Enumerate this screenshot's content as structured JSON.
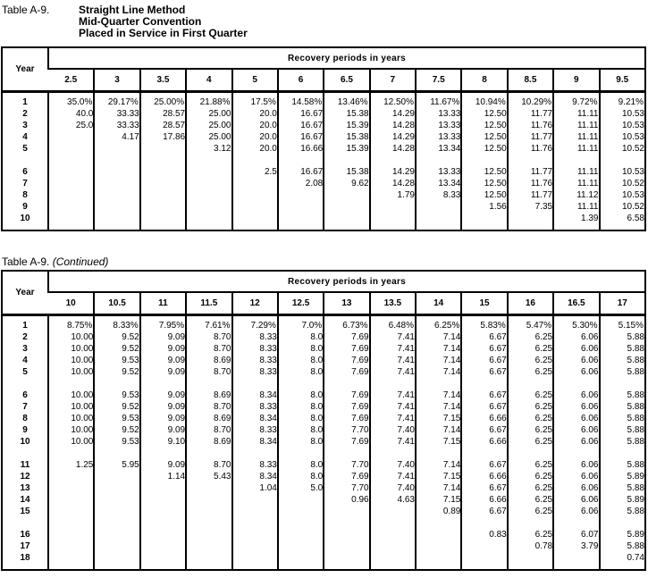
{
  "colors": {
    "background": "#ffffff",
    "text": "#000000",
    "border": "#000000"
  },
  "tables": [
    {
      "label": "Table A-9.",
      "title_lines": [
        "Straight Line Method",
        "Mid-Quarter Convention",
        "Placed in Service in First Quarter"
      ],
      "year_header": "Year",
      "span_header": "Recovery periods in years",
      "periods": [
        "2.5",
        "3",
        "3.5",
        "4",
        "5",
        "6",
        "6.5",
        "7",
        "7.5",
        "8",
        "8.5",
        "9",
        "9.5"
      ],
      "groups": [
        [
          {
            "y": "1",
            "c": [
              "35.0%",
              "29.17%",
              "25.00%",
              "21.88%",
              "17.5%",
              "14.58%",
              "13.46%",
              "12.50%",
              "11.67%",
              "10.94%",
              "10.29%",
              "9.72%",
              "9.21%"
            ]
          },
          {
            "y": "2",
            "c": [
              "40.0",
              "33.33",
              "28.57",
              "25.00",
              "20.0",
              "16.67",
              "15.38",
              "14.29",
              "13.33",
              "12.50",
              "11.77",
              "11.11",
              "10.53"
            ]
          },
          {
            "y": "3",
            "c": [
              "25.0",
              "33.33",
              "28.57",
              "25.00",
              "20.0",
              "16.67",
              "15.39",
              "14.28",
              "13.33",
              "12.50",
              "11.76",
              "11.11",
              "10.53"
            ]
          },
          {
            "y": "4",
            "c": [
              "",
              "4.17",
              "17.86",
              "25.00",
              "20.0",
              "16.67",
              "15.38",
              "14.29",
              "13.33",
              "12.50",
              "11.77",
              "11.11",
              "10.53"
            ]
          },
          {
            "y": "5",
            "c": [
              "",
              "",
              "",
              "3.12",
              "20.0",
              "16.66",
              "15.39",
              "14.28",
              "13.34",
              "12.50",
              "11.76",
              "11.11",
              "10.52"
            ]
          }
        ],
        [
          {
            "y": "6",
            "c": [
              "",
              "",
              "",
              "",
              "2.5",
              "16.67",
              "15.38",
              "14.29",
              "13.33",
              "12.50",
              "11.77",
              "11.11",
              "10.53"
            ]
          },
          {
            "y": "7",
            "c": [
              "",
              "",
              "",
              "",
              "",
              "2.08",
              "9.62",
              "14.28",
              "13.34",
              "12.50",
              "11.76",
              "11.11",
              "10.52"
            ]
          },
          {
            "y": "8",
            "c": [
              "",
              "",
              "",
              "",
              "",
              "",
              "",
              "1.79",
              "8.33",
              "12.50",
              "11.77",
              "11.12",
              "10.53"
            ]
          },
          {
            "y": "9",
            "c": [
              "",
              "",
              "",
              "",
              "",
              "",
              "",
              "",
              "",
              "1.56",
              "7.35",
              "11.11",
              "10.52"
            ]
          },
          {
            "y": "10",
            "c": [
              "",
              "",
              "",
              "",
              "",
              "",
              "",
              "",
              "",
              "",
              "",
              "1.39",
              "6.58"
            ]
          }
        ]
      ]
    },
    {
      "label": "Table A-9.",
      "continued": "(Continued)",
      "year_header": "Year",
      "span_header": "Recovery periods in years",
      "periods": [
        "10",
        "10.5",
        "11",
        "11.5",
        "12",
        "12.5",
        "13",
        "13.5",
        "14",
        "15",
        "16",
        "16.5",
        "17"
      ],
      "groups": [
        [
          {
            "y": "1",
            "c": [
              "8.75%",
              "8.33%",
              "7.95%",
              "7.61%",
              "7.29%",
              "7.0%",
              "6.73%",
              "6.48%",
              "6.25%",
              "5.83%",
              "5.47%",
              "5.30%",
              "5.15%"
            ]
          },
          {
            "y": "2",
            "c": [
              "10.00",
              "9.52",
              "9.09",
              "8.70",
              "8.33",
              "8.0",
              "7.69",
              "7.41",
              "7.14",
              "6.67",
              "6.25",
              "6.06",
              "5.88"
            ]
          },
          {
            "y": "3",
            "c": [
              "10.00",
              "9.52",
              "9.09",
              "8.70",
              "8.33",
              "8.0",
              "7.69",
              "7.41",
              "7.14",
              "6.67",
              "6.25",
              "6.06",
              "5.88"
            ]
          },
          {
            "y": "4",
            "c": [
              "10.00",
              "9.53",
              "9.09",
              "8.69",
              "8.33",
              "8.0",
              "7.69",
              "7.41",
              "7.14",
              "6.67",
              "6.25",
              "6.06",
              "5.88"
            ]
          },
          {
            "y": "5",
            "c": [
              "10.00",
              "9.52",
              "9.09",
              "8.70",
              "8.33",
              "8.0",
              "7.69",
              "7.41",
              "7.14",
              "6.67",
              "6.25",
              "6.06",
              "5.88"
            ]
          }
        ],
        [
          {
            "y": "6",
            "c": [
              "10.00",
              "9.53",
              "9.09",
              "8.69",
              "8.34",
              "8.0",
              "7.69",
              "7.41",
              "7.14",
              "6.67",
              "6.25",
              "6.06",
              "5.88"
            ]
          },
          {
            "y": "7",
            "c": [
              "10.00",
              "9.52",
              "9.09",
              "8.70",
              "8.33",
              "8.0",
              "7.69",
              "7.41",
              "7.14",
              "6.67",
              "6.25",
              "6.06",
              "5.88"
            ]
          },
          {
            "y": "8",
            "c": [
              "10.00",
              "9.53",
              "9.09",
              "8.69",
              "8.34",
              "8.0",
              "7.69",
              "7.41",
              "7.15",
              "6.66",
              "6.25",
              "6.06",
              "5.88"
            ]
          },
          {
            "y": "9",
            "c": [
              "10.00",
              "9.52",
              "9.09",
              "8.70",
              "8.33",
              "8.0",
              "7.70",
              "7.40",
              "7.14",
              "6.67",
              "6.25",
              "6.06",
              "5.88"
            ]
          },
          {
            "y": "10",
            "c": [
              "10.00",
              "9.53",
              "9.10",
              "8.69",
              "8.34",
              "8.0",
              "7.69",
              "7.41",
              "7.15",
              "6.66",
              "6.25",
              "6.06",
              "5.88"
            ]
          }
        ],
        [
          {
            "y": "11",
            "c": [
              "1.25",
              "5.95",
              "9.09",
              "8.70",
              "8.33",
              "8.0",
              "7.70",
              "7.40",
              "7.14",
              "6.67",
              "6.25",
              "6.06",
              "5.88"
            ]
          },
          {
            "y": "12",
            "c": [
              "",
              "",
              "1.14",
              "5.43",
              "8.34",
              "8.0",
              "7.69",
              "7.41",
              "7.15",
              "6.66",
              "6.25",
              "6.06",
              "5.89"
            ]
          },
          {
            "y": "13",
            "c": [
              "",
              "",
              "",
              "",
              "1.04",
              "5.0",
              "7.70",
              "7.40",
              "7.14",
              "6.67",
              "6.25",
              "6.06",
              "5.88"
            ]
          },
          {
            "y": "14",
            "c": [
              "",
              "",
              "",
              "",
              "",
              "",
              "0.96",
              "4.63",
              "7.15",
              "6.66",
              "6.25",
              "6.06",
              "5.89"
            ]
          },
          {
            "y": "15",
            "c": [
              "",
              "",
              "",
              "",
              "",
              "",
              "",
              "",
              "0.89",
              "6.67",
              "6.25",
              "6.06",
              "5.88"
            ]
          }
        ],
        [
          {
            "y": "16",
            "c": [
              "",
              "",
              "",
              "",
              "",
              "",
              "",
              "",
              "",
              "0.83",
              "6.25",
              "6.07",
              "5.89"
            ]
          },
          {
            "y": "17",
            "c": [
              "",
              "",
              "",
              "",
              "",
              "",
              "",
              "",
              "",
              "",
              "0.78",
              "3.79",
              "5.88"
            ]
          },
          {
            "y": "18",
            "c": [
              "",
              "",
              "",
              "",
              "",
              "",
              "",
              "",
              "",
              "",
              "",
              "",
              "0.74"
            ]
          }
        ]
      ]
    }
  ]
}
